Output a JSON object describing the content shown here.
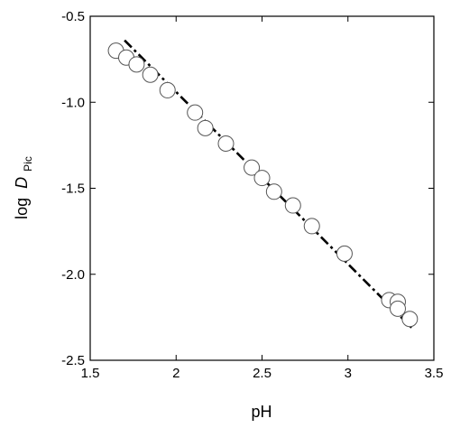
{
  "chart_data": {
    "type": "scatter",
    "title": "",
    "xlabel": "pH",
    "ylabel_main": "log",
    "ylabel_italic": "D",
    "ylabel_sub": "Pic",
    "xlim": [
      1.5,
      3.5
    ],
    "ylim": [
      -2.5,
      -0.5
    ],
    "x_ticks": [
      1.5,
      2,
      2.5,
      3,
      3.5
    ],
    "x_tick_labels": [
      "1.5",
      "2",
      "2.5",
      "3",
      "3.5"
    ],
    "y_ticks": [
      -0.5,
      -1.0,
      -1.5,
      -2.0,
      -2.5
    ],
    "y_tick_labels": [
      "-0.5",
      "-1.0",
      "-1.5",
      "-2.0",
      "-2.5"
    ],
    "grid": false,
    "legend": "none",
    "series": [
      {
        "style": "open-circle",
        "points": [
          {
            "x": 1.65,
            "y": -0.7
          },
          {
            "x": 1.71,
            "y": -0.74
          },
          {
            "x": 1.77,
            "y": -0.78
          },
          {
            "x": 1.85,
            "y": -0.84
          },
          {
            "x": 1.95,
            "y": -0.93
          },
          {
            "x": 2.11,
            "y": -1.06
          },
          {
            "x": 2.17,
            "y": -1.15
          },
          {
            "x": 2.29,
            "y": -1.24
          },
          {
            "x": 2.44,
            "y": -1.38
          },
          {
            "x": 2.5,
            "y": -1.44
          },
          {
            "x": 2.57,
            "y": -1.52
          },
          {
            "x": 2.68,
            "y": -1.6
          },
          {
            "x": 2.79,
            "y": -1.72
          },
          {
            "x": 2.98,
            "y": -1.88
          },
          {
            "x": 3.24,
            "y": -2.15
          },
          {
            "x": 3.29,
            "y": -2.16
          },
          {
            "x": 3.29,
            "y": -2.2
          },
          {
            "x": 3.36,
            "y": -2.26
          }
        ]
      },
      {
        "style": "dash-dot-line",
        "points": [
          {
            "x": 1.7,
            "y": -0.64
          },
          {
            "x": 3.37,
            "y": -2.31
          }
        ]
      }
    ],
    "colors": {
      "axis": "#000000",
      "marker_stroke": "#555555",
      "marker_fill": "#ffffff",
      "fit_line": "#000000"
    }
  }
}
